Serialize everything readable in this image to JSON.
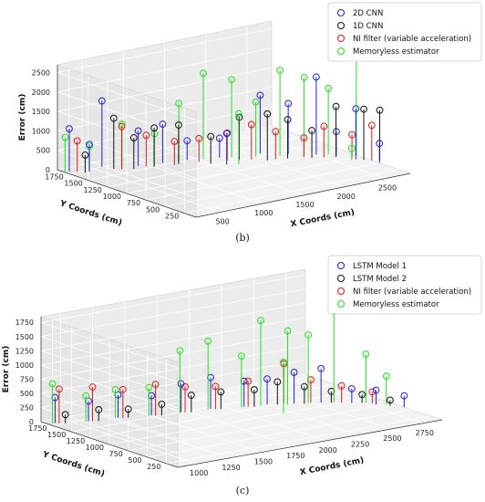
{
  "chart_data": [
    {
      "type": "scatter",
      "subtype": "3d-stem",
      "caption": "(b)",
      "xlabel": "X Coords (cm)",
      "ylabel": "Y Coords (cm)",
      "zlabel": "Error (cm)",
      "xticks": [
        "500",
        "1000",
        "1500",
        "2000",
        "2500"
      ],
      "yticks": [
        "250",
        "500",
        "750",
        "1000",
        "1250",
        "1500",
        "1750"
      ],
      "zticks": [
        "0",
        "500",
        "1000",
        "1500",
        "2000",
        "2500"
      ],
      "xlim": [
        200,
        2800
      ],
      "ylim": [
        100,
        1900
      ],
      "zlim": [
        0,
        2700
      ],
      "legend_position": "top-right",
      "series": [
        {
          "name": "2D CNN",
          "color": "#1f1fdc",
          "points": [
            [
              250,
              1800,
              1100
            ],
            [
              400,
              1700,
              700
            ],
            [
              600,
              1750,
              1700
            ],
            [
              900,
              1600,
              900
            ],
            [
              1150,
              1550,
              1000
            ],
            [
              1400,
              1500,
              500
            ],
            [
              1700,
              1400,
              500
            ],
            [
              2100,
              1300,
              1500
            ],
            [
              2300,
              1150,
              1300
            ],
            [
              2500,
              1000,
              2000
            ],
            [
              2650,
              900,
              600
            ],
            [
              2700,
              700,
              1300
            ],
            [
              2800,
              500,
              500
            ],
            [
              1600,
              1200,
              800
            ]
          ]
        },
        {
          "name": "1D CNN",
          "color": "#111111",
          "points": [
            [
              350,
              1700,
              450
            ],
            [
              650,
              1650,
              1300
            ],
            [
              800,
              1550,
              800
            ],
            [
              1000,
              1500,
              1000
            ],
            [
              1250,
              1450,
              1000
            ],
            [
              1500,
              1300,
              700
            ],
            [
              1800,
              1250,
              1100
            ],
            [
              2000,
              1100,
              1200
            ],
            [
              2200,
              1050,
              1000
            ],
            [
              2400,
              950,
              700
            ],
            [
              2600,
              850,
              1300
            ],
            [
              2750,
              650,
              1300
            ],
            [
              2850,
              550,
              1300
            ]
          ]
        },
        {
          "name": "NI filter (variable acceleration)",
          "color": "#e01a1a",
          "points": [
            [
              300,
              1750,
              800
            ],
            [
              700,
              1600,
              1100
            ],
            [
              950,
              1550,
              800
            ],
            [
              1200,
              1450,
              600
            ],
            [
              1450,
              1400,
              600
            ],
            [
              1700,
              1300,
              700
            ],
            [
              1900,
              1200,
              900
            ],
            [
              2100,
              1100,
              700
            ],
            [
              2350,
              1000,
              500
            ],
            [
              2500,
              900,
              800
            ],
            [
              2700,
              750,
              600
            ],
            [
              2800,
              600,
              900
            ]
          ]
        },
        {
          "name": "Memoryless estimator",
          "color": "#22e022",
          "points": [
            [
              200,
              1800,
              900
            ],
            [
              450,
              1750,
              600
            ],
            [
              750,
              1650,
              1100
            ],
            [
              1050,
              1550,
              800
            ],
            [
              1300,
              1500,
              1500
            ],
            [
              1550,
              1450,
              2200
            ],
            [
              1800,
              1350,
              2000
            ],
            [
              2000,
              1250,
              1400
            ],
            [
              2200,
              1150,
              2200
            ],
            [
              2400,
              1050,
              2000
            ],
            [
              2600,
              950,
              1700
            ],
            [
              2800,
              800,
              2600
            ],
            [
              2650,
              700,
              300
            ],
            [
              1700,
              1150,
              1300
            ]
          ]
        }
      ]
    },
    {
      "type": "scatter",
      "subtype": "3d-stem",
      "caption": "(c)",
      "xlabel": "X Coords (cm)",
      "ylabel": "Y Coords (cm)",
      "zlabel": "Error (cm)",
      "xticks": [
        "1000",
        "1250",
        "1500",
        "1750",
        "2000",
        "2250",
        "2500",
        "2750"
      ],
      "yticks": [
        "250",
        "500",
        "750",
        "1000",
        "1250",
        "1500",
        "1750"
      ],
      "zticks": [
        "0",
        "250",
        "500",
        "750",
        "1000",
        "1250",
        "1500",
        "1750"
      ],
      "xlim": [
        850,
        2900
      ],
      "ylim": [
        100,
        1900
      ],
      "zlim": [
        0,
        1850
      ],
      "legend_position": "top-right",
      "series": [
        {
          "name": "LSTM Model 1",
          "color": "#1f1fdc",
          "points": [
            [
              900,
              1800,
              450
            ],
            [
              1100,
              1700,
              350
            ],
            [
              1300,
              1650,
              400
            ],
            [
              1500,
              1550,
              350
            ],
            [
              1700,
              1500,
              500
            ],
            [
              1900,
              1450,
              550
            ],
            [
              2100,
              1350,
              450
            ],
            [
              2250,
              1300,
              450
            ],
            [
              2400,
              1200,
              550
            ],
            [
              2550,
              1100,
              600
            ],
            [
              2700,
              950,
              250
            ],
            [
              2800,
              800,
              250
            ],
            [
              2900,
              600,
              200
            ]
          ]
        },
        {
          "name": "LSTM Model 2",
          "color": "#111111",
          "points": [
            [
              950,
              1750,
              150
            ],
            [
              1150,
              1650,
              200
            ],
            [
              1350,
              1600,
              150
            ],
            [
              1550,
              1500,
              200
            ],
            [
              1750,
              1450,
              300
            ],
            [
              1950,
              1400,
              300
            ],
            [
              2150,
              1300,
              300
            ],
            [
              2300,
              1250,
              400
            ],
            [
              2450,
              1150,
              300
            ],
            [
              2600,
              1050,
              200
            ],
            [
              2750,
              900,
              150
            ],
            [
              2850,
              700,
              100
            ]
          ]
        },
        {
          "name": "NI filter (variable acceleration)",
          "color": "#e01a1a",
          "points": [
            [
              920,
              1780,
              600
            ],
            [
              1120,
              1680,
              600
            ],
            [
              1320,
              1620,
              500
            ],
            [
              1520,
              1530,
              550
            ],
            [
              1720,
              1480,
              450
            ],
            [
              1920,
              1420,
              400
            ],
            [
              2120,
              1330,
              450
            ],
            [
              2350,
              1250,
              700
            ],
            [
              2500,
              1150,
              400
            ],
            [
              2650,
              1000,
              300
            ],
            [
              2800,
              850,
              200
            ]
          ]
        },
        {
          "name": "Memoryless estimator",
          "color": "#22e022",
          "points": [
            [
              880,
              1800,
              700
            ],
            [
              1080,
              1700,
              450
            ],
            [
              1280,
              1650,
              500
            ],
            [
              1480,
              1550,
              500
            ],
            [
              1680,
              1480,
              1100
            ],
            [
              1880,
              1450,
              1200
            ],
            [
              2080,
              1350,
              900
            ],
            [
              2200,
              1300,
              1500
            ],
            [
              2350,
              1200,
              1300
            ],
            [
              2480,
              1150,
              1200
            ],
            [
              2620,
              1050,
              1600
            ],
            [
              2780,
              900,
              850
            ],
            [
              2850,
              750,
              500
            ],
            [
              2200,
              1000,
              900
            ]
          ]
        }
      ]
    }
  ]
}
